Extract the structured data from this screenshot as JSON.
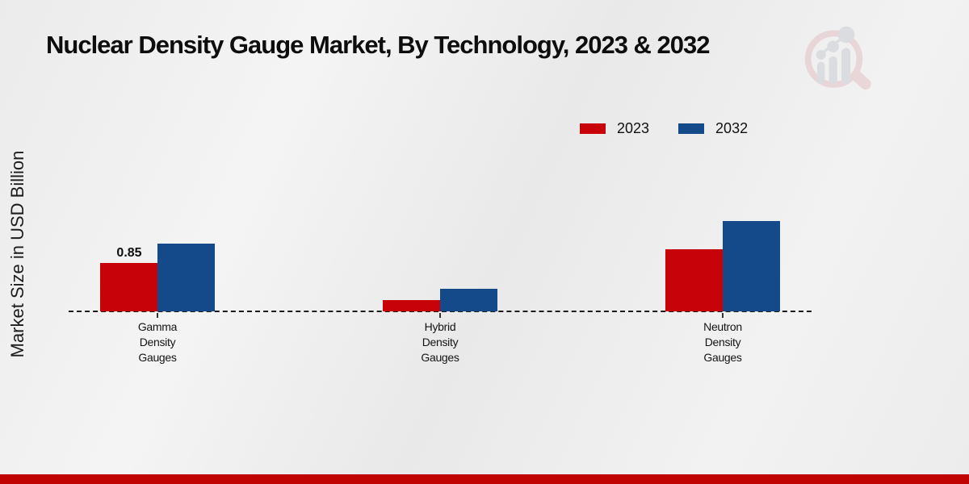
{
  "page": {
    "title": "Nuclear Density Gauge Market, By Technology, 2023 & 2032",
    "y_axis_label": "Market Size in USD Billion"
  },
  "legend": {
    "items": [
      {
        "label": "2023",
        "color": "#c70309"
      },
      {
        "label": "2032",
        "color": "#14498a"
      }
    ]
  },
  "chart_data": {
    "type": "bar",
    "title": "Nuclear Density Gauge Market, By Technology, 2023 & 2032",
    "ylabel": "Market Size in USD Billion",
    "xlabel": "",
    "categories": [
      "Gamma Density Gauges",
      "Hybrid Density Gauges",
      "Neutron Density Gauges"
    ],
    "series": [
      {
        "name": "2023",
        "color": "#c70309",
        "values": [
          0.85,
          0.2,
          1.1
        ]
      },
      {
        "name": "2032",
        "color": "#14498a",
        "values": [
          1.2,
          0.4,
          1.6
        ]
      }
    ],
    "value_labels": [
      {
        "series_index": 0,
        "category_index": 0,
        "text": "0.85"
      }
    ],
    "ylim": [
      0,
      1.8
    ],
    "grid": false,
    "legend_position": "top-right",
    "baseline_style": "dashed"
  },
  "watermark": {
    "name": "magnifier-bar-chart-logo"
  },
  "footer": {
    "accent_color": "#c00404"
  }
}
